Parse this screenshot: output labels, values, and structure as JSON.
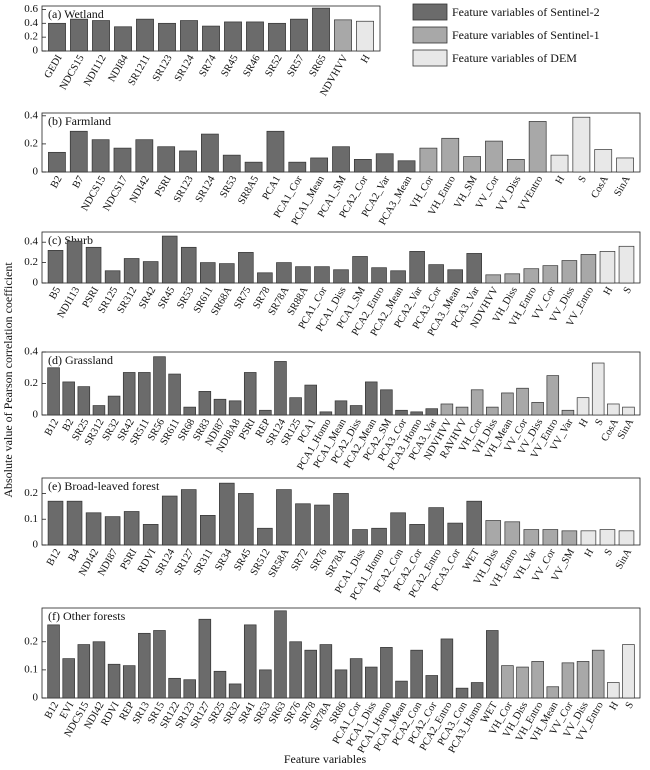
{
  "chart_data": [
    {
      "type": "bar",
      "title": "(a) Wetland",
      "categories": [
        "GEDI",
        "NDCS15",
        "NDI112",
        "NDI84",
        "SR1211",
        "SR123",
        "SR124",
        "SR74",
        "SR45",
        "SR46",
        "SR52",
        "SR57",
        "SR65",
        "NDVHVV",
        "H"
      ],
      "values": [
        0.4,
        0.46,
        0.44,
        0.35,
        0.46,
        0.4,
        0.44,
        0.36,
        0.42,
        0.42,
        0.4,
        0.46,
        0.62,
        0.45,
        0.43
      ],
      "colors": [
        "#6b6b6b",
        "#6b6b6b",
        "#6b6b6b",
        "#6b6b6b",
        "#6b6b6b",
        "#6b6b6b",
        "#6b6b6b",
        "#6b6b6b",
        "#6b6b6b",
        "#6b6b6b",
        "#6b6b6b",
        "#6b6b6b",
        "#6b6b6b",
        "#a8a8a8",
        "#e8e8e8"
      ],
      "ylim": [
        0,
        0.65
      ],
      "yticks": [
        0,
        0.2,
        0.4,
        0.6
      ]
    },
    {
      "type": "bar",
      "title": "(b) Farmland",
      "categories": [
        "B2",
        "B7",
        "NDCS15",
        "NDCS17",
        "NDI42",
        "PSRI",
        "SR123",
        "SR124",
        "SR53",
        "SR8A5",
        "PCA1",
        "PCA1_Cor",
        "PCA1_Mean",
        "PCA1_SM",
        "PCA2_Cor",
        "PCA2_Var",
        "PCA3_Mean",
        "VH_Cor",
        "VH_Entro",
        "VH_SM",
        "VV_Cor",
        "VV_Diss",
        "VVEntro",
        "H",
        "S",
        "CosA",
        "SinA"
      ],
      "values": [
        0.14,
        0.29,
        0.23,
        0.17,
        0.23,
        0.18,
        0.15,
        0.27,
        0.12,
        0.07,
        0.29,
        0.07,
        0.1,
        0.18,
        0.09,
        0.13,
        0.08,
        0.17,
        0.24,
        0.11,
        0.22,
        0.09,
        0.36,
        0.12,
        0.39,
        0.16,
        0.1
      ],
      "colors": [
        "#6b6b6b",
        "#6b6b6b",
        "#6b6b6b",
        "#6b6b6b",
        "#6b6b6b",
        "#6b6b6b",
        "#6b6b6b",
        "#6b6b6b",
        "#6b6b6b",
        "#6b6b6b",
        "#6b6b6b",
        "#6b6b6b",
        "#6b6b6b",
        "#6b6b6b",
        "#6b6b6b",
        "#6b6b6b",
        "#6b6b6b",
        "#a8a8a8",
        "#a8a8a8",
        "#a8a8a8",
        "#a8a8a8",
        "#a8a8a8",
        "#a8a8a8",
        "#e8e8e8",
        "#e8e8e8",
        "#e8e8e8",
        "#e8e8e8"
      ],
      "ylim": [
        0,
        0.42
      ],
      "yticks": [
        0,
        0.2,
        0.4
      ]
    },
    {
      "type": "bar",
      "title": "(c) Shurb",
      "categories": [
        "B5",
        "NDI113",
        "PSRI",
        "SR125",
        "SR312",
        "SR42",
        "SR45",
        "SR53",
        "SR611",
        "SR68A",
        "SR75",
        "SR78",
        "SR78A",
        "SR88A",
        "PCA1_Cor",
        "PCA1_Diss",
        "PCA1_SM",
        "PCA2_Entro",
        "PCA2_Mean",
        "PCA2_Var",
        "PCA3_Cor",
        "PCA3_Mean",
        "PCA3_Var",
        "NDVHVV",
        "VH_Diss",
        "VH_Entro",
        "VV_Cor",
        "VV_Diss",
        "VV_Entro",
        "H",
        "S"
      ],
      "values": [
        0.32,
        0.41,
        0.35,
        0.12,
        0.24,
        0.21,
        0.46,
        0.35,
        0.2,
        0.19,
        0.3,
        0.1,
        0.2,
        0.16,
        0.16,
        0.13,
        0.26,
        0.15,
        0.12,
        0.31,
        0.18,
        0.13,
        0.29,
        0.08,
        0.09,
        0.14,
        0.17,
        0.22,
        0.28,
        0.31,
        0.36
      ],
      "colors": [
        "#6b6b6b",
        "#6b6b6b",
        "#6b6b6b",
        "#6b6b6b",
        "#6b6b6b",
        "#6b6b6b",
        "#6b6b6b",
        "#6b6b6b",
        "#6b6b6b",
        "#6b6b6b",
        "#6b6b6b",
        "#6b6b6b",
        "#6b6b6b",
        "#6b6b6b",
        "#6b6b6b",
        "#6b6b6b",
        "#6b6b6b",
        "#6b6b6b",
        "#6b6b6b",
        "#6b6b6b",
        "#6b6b6b",
        "#6b6b6b",
        "#6b6b6b",
        "#a8a8a8",
        "#a8a8a8",
        "#a8a8a8",
        "#a8a8a8",
        "#a8a8a8",
        "#a8a8a8",
        "#e8e8e8",
        "#e8e8e8"
      ],
      "ylim": [
        0,
        0.5
      ],
      "yticks": [
        0,
        0.2,
        0.4
      ]
    },
    {
      "type": "bar",
      "title": "(d) Grassland",
      "categories": [
        "B12",
        "B2",
        "SR25",
        "SR312",
        "SR32",
        "SR42",
        "SR511",
        "SR56",
        "SR611",
        "SR68",
        "SR83",
        "NDI87",
        "NDI8A8",
        "PSRI",
        "REP",
        "SR124",
        "SR125",
        "PCA1",
        "PCA1_Homo",
        "PCA1_Mean",
        "PCA2_Diss",
        "PCA2_Mean",
        "PCA2_SM",
        "PCA3_Cor",
        "PCA3_Homo",
        "PCA3_Var",
        "NDVHVV",
        "RAVHVV",
        "VH_Cor",
        "VH_Diss",
        "VH_Mean",
        "VV_Cor",
        "VV_Diss",
        "VV_Entro",
        "VV_Var",
        "H",
        "S",
        "CosA",
        "SinA"
      ],
      "values": [
        0.3,
        0.21,
        0.18,
        0.06,
        0.12,
        0.27,
        0.27,
        0.37,
        0.26,
        0.05,
        0.15,
        0.1,
        0.09,
        0.27,
        0.03,
        0.34,
        0.11,
        0.19,
        0.02,
        0.09,
        0.06,
        0.21,
        0.16,
        0.03,
        0.02,
        0.04,
        0.07,
        0.05,
        0.16,
        0.05,
        0.14,
        0.17,
        0.08,
        0.25,
        0.03,
        0.11,
        0.33,
        0.07,
        0.05
      ],
      "colors": [
        "#6b6b6b",
        "#6b6b6b",
        "#6b6b6b",
        "#6b6b6b",
        "#6b6b6b",
        "#6b6b6b",
        "#6b6b6b",
        "#6b6b6b",
        "#6b6b6b",
        "#6b6b6b",
        "#6b6b6b",
        "#6b6b6b",
        "#6b6b6b",
        "#6b6b6b",
        "#6b6b6b",
        "#6b6b6b",
        "#6b6b6b",
        "#6b6b6b",
        "#6b6b6b",
        "#6b6b6b",
        "#6b6b6b",
        "#6b6b6b",
        "#6b6b6b",
        "#6b6b6b",
        "#6b6b6b",
        "#6b6b6b",
        "#a8a8a8",
        "#a8a8a8",
        "#a8a8a8",
        "#a8a8a8",
        "#a8a8a8",
        "#a8a8a8",
        "#a8a8a8",
        "#a8a8a8",
        "#a8a8a8",
        "#e8e8e8",
        "#e8e8e8",
        "#e8e8e8",
        "#e8e8e8"
      ],
      "ylim": [
        0,
        0.4
      ],
      "yticks": [
        0,
        0.2,
        0.4
      ]
    },
    {
      "type": "bar",
      "title": "(e) Broad-leaved forest",
      "categories": [
        "B12",
        "B4",
        "NDI42",
        "NDI87",
        "PSRI",
        "RDVI",
        "SR124",
        "SR127",
        "SR311",
        "SR34",
        "SR45",
        "SR512",
        "SR58A",
        "SR72",
        "SR76",
        "SR78A",
        "PCA1_Diss",
        "PCA1_Homo",
        "PCA2_Con",
        "PCA2_Cor",
        "PCA2_Entro",
        "PCA3_Cor",
        "WET",
        "VH_Diss",
        "VH_Entro",
        "VH_Var",
        "VV_Cor",
        "VV_SM",
        "H",
        "S",
        "SinA"
      ],
      "values": [
        0.17,
        0.17,
        0.125,
        0.11,
        0.13,
        0.08,
        0.19,
        0.215,
        0.115,
        0.24,
        0.2,
        0.065,
        0.215,
        0.16,
        0.155,
        0.2,
        0.06,
        0.065,
        0.125,
        0.08,
        0.145,
        0.085,
        0.17,
        0.095,
        0.09,
        0.06,
        0.06,
        0.055,
        0.055,
        0.06,
        0.055
      ],
      "colors": [
        "#6b6b6b",
        "#6b6b6b",
        "#6b6b6b",
        "#6b6b6b",
        "#6b6b6b",
        "#6b6b6b",
        "#6b6b6b",
        "#6b6b6b",
        "#6b6b6b",
        "#6b6b6b",
        "#6b6b6b",
        "#6b6b6b",
        "#6b6b6b",
        "#6b6b6b",
        "#6b6b6b",
        "#6b6b6b",
        "#6b6b6b",
        "#6b6b6b",
        "#6b6b6b",
        "#6b6b6b",
        "#6b6b6b",
        "#6b6b6b",
        "#6b6b6b",
        "#a8a8a8",
        "#a8a8a8",
        "#a8a8a8",
        "#a8a8a8",
        "#a8a8a8",
        "#e8e8e8",
        "#e8e8e8",
        "#e8e8e8"
      ],
      "ylim": [
        0,
        0.26
      ],
      "yticks": [
        0,
        0.1,
        0.2
      ]
    },
    {
      "type": "bar",
      "title": "(f) Other forests",
      "categories": [
        "B12",
        "EVI",
        "NDCS15",
        "NDI42",
        "RDVI",
        "REP",
        "SR13",
        "SR15",
        "SR122",
        "SR123",
        "SR127",
        "SR25",
        "SR32",
        "SR41",
        "SR53",
        "SR63",
        "SR76",
        "SR78",
        "SR78A",
        "SR86",
        "PCA1_Cor",
        "PCA1_Diss",
        "PCA1_Homo",
        "PCA1_Mean",
        "PCA2_Con",
        "PCA2_Cor",
        "PCA2_Entro",
        "PCA3_Con",
        "PCA3_Homo",
        "WET",
        "VH_Cor",
        "VH_Diss",
        "VH_Entro",
        "VH_Mean",
        "VV_Cor",
        "VV_Diss",
        "VV_Entro",
        "H",
        "S"
      ],
      "values": [
        0.26,
        0.14,
        0.19,
        0.2,
        0.12,
        0.115,
        0.23,
        0.24,
        0.07,
        0.065,
        0.28,
        0.095,
        0.05,
        0.26,
        0.1,
        0.31,
        0.2,
        0.17,
        0.19,
        0.1,
        0.14,
        0.11,
        0.18,
        0.06,
        0.17,
        0.08,
        0.21,
        0.035,
        0.055,
        0.24,
        0.115,
        0.11,
        0.13,
        0.04,
        0.125,
        0.13,
        0.17,
        0.055,
        0.19
      ],
      "colors": [
        "#6b6b6b",
        "#6b6b6b",
        "#6b6b6b",
        "#6b6b6b",
        "#6b6b6b",
        "#6b6b6b",
        "#6b6b6b",
        "#6b6b6b",
        "#6b6b6b",
        "#6b6b6b",
        "#6b6b6b",
        "#6b6b6b",
        "#6b6b6b",
        "#6b6b6b",
        "#6b6b6b",
        "#6b6b6b",
        "#6b6b6b",
        "#6b6b6b",
        "#6b6b6b",
        "#6b6b6b",
        "#6b6b6b",
        "#6b6b6b",
        "#6b6b6b",
        "#6b6b6b",
        "#6b6b6b",
        "#6b6b6b",
        "#6b6b6b",
        "#6b6b6b",
        "#6b6b6b",
        "#6b6b6b",
        "#a8a8a8",
        "#a8a8a8",
        "#a8a8a8",
        "#a8a8a8",
        "#a8a8a8",
        "#a8a8a8",
        "#a8a8a8",
        "#e8e8e8",
        "#e8e8e8"
      ],
      "ylim": [
        0,
        0.32
      ],
      "yticks": [
        0,
        0.1,
        0.2
      ]
    }
  ],
  "legend": [
    {
      "name": "Feature variables of Sentinel-2",
      "color": "#6b6b6b"
    },
    {
      "name": "Feature variables of Sentinel-1",
      "color": "#a8a8a8"
    },
    {
      "name": "Feature variables of DEM",
      "color": "#e8e8e8"
    }
  ],
  "y_label": "Absolute value of Pearson correlation coefficient",
  "x_label": "Feature variables"
}
